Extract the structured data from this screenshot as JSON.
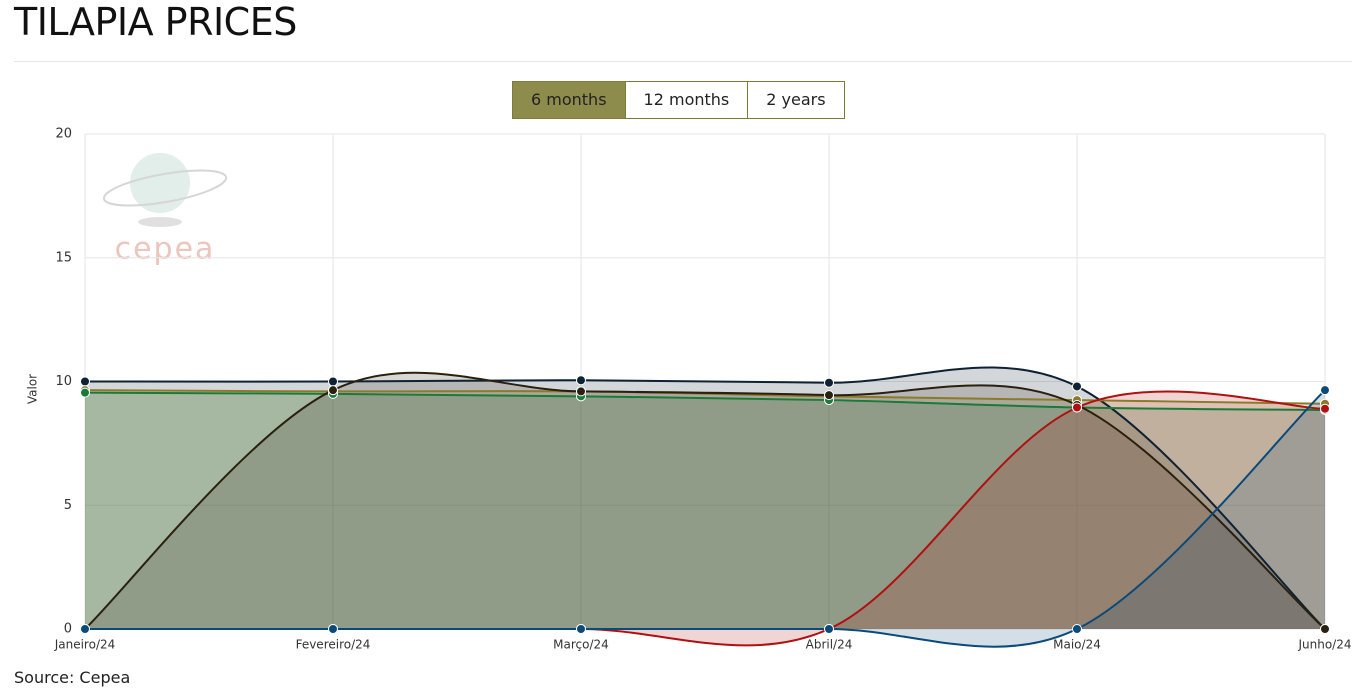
{
  "chart_data": {
    "type": "spline-area",
    "title": "TILAPIA PRICES",
    "y_label": "Valor",
    "watermark": "cepea",
    "categories": [
      "Janeiro/24",
      "Fevereiro/24",
      "Março/24",
      "Abril/24",
      "Maio/24",
      "Junho/24"
    ],
    "series": [
      {
        "color": "#0e2233",
        "values": [
          10,
          10,
          10.05,
          9.95,
          9.8,
          0
        ]
      },
      {
        "color": "#8a7a2a",
        "values": [
          9.65,
          9.6,
          9.6,
          9.4,
          9.25,
          9.1
        ]
      },
      {
        "color": "#1a7a3a",
        "values": [
          9.55,
          9.5,
          9.4,
          9.25,
          8.95,
          8.85
        ]
      },
      {
        "color": "#2a2010",
        "values": [
          0,
          9.65,
          9.6,
          9.45,
          9.05,
          0
        ]
      },
      {
        "color": "#b01010",
        "values": [
          0,
          0,
          0,
          0,
          8.95,
          8.9
        ]
      },
      {
        "color": "#0a4a7a",
        "values": [
          0,
          0,
          0,
          0,
          0,
          9.65
        ]
      }
    ],
    "ylim": [
      0,
      20
    ],
    "yticks": [
      0,
      5,
      10,
      15,
      20
    ],
    "grid": true
  },
  "range_selector": {
    "options": [
      "6 months",
      "12 months",
      "2 years"
    ],
    "active": 0
  },
  "source": "Source: Cepea"
}
